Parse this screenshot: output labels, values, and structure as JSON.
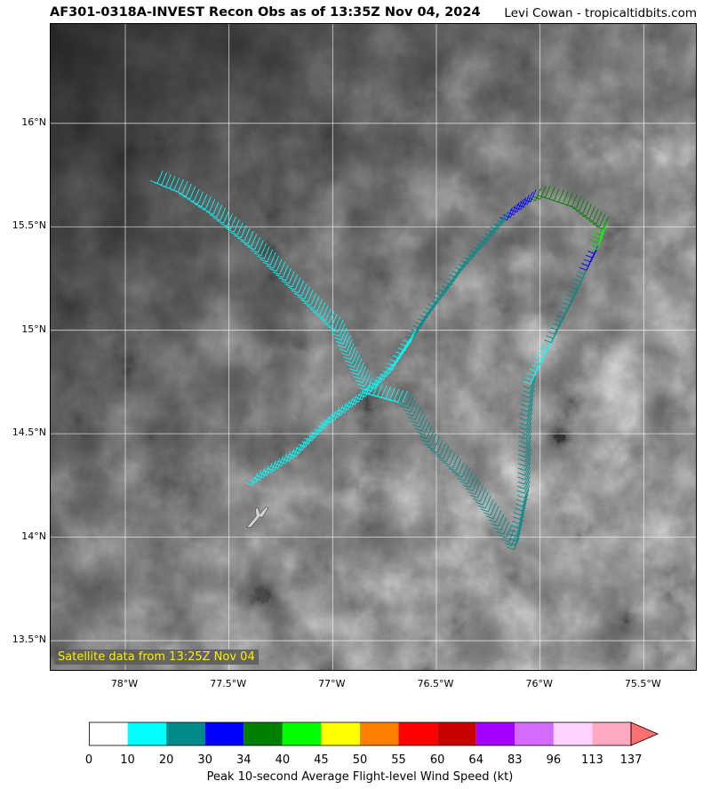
{
  "header": {
    "title": "AF301-0318A-INVEST Recon Obs as of 13:35Z Nov 04, 2024",
    "credit": "Levi Cowan - tropicaltidbits.com"
  },
  "map": {
    "satellite_label": "Satellite data from 13:25Z Nov 04",
    "lat_labels": [
      "16°N",
      "15.5°N",
      "15°N",
      "14.5°N",
      "14°N",
      "13.5°N"
    ],
    "lon_labels": [
      "78°W",
      "77.5°W",
      "77°W",
      "76.5°W",
      "76°W",
      "75.5°W"
    ],
    "lat_range": [
      13.35,
      16.48
    ],
    "lon_range": [
      -78.36,
      -75.24
    ],
    "aircraft_icon": "airplane-icon",
    "flight_track": [
      {
        "lon": -77.82,
        "lat": 15.77,
        "color": "cyan"
      },
      {
        "lon": -77.7,
        "lat": 15.72,
        "color": "cyan"
      },
      {
        "lon": -77.55,
        "lat": 15.62,
        "color": "cyan"
      },
      {
        "lon": -77.35,
        "lat": 15.45,
        "color": "cyan"
      },
      {
        "lon": -77.2,
        "lat": 15.3,
        "color": "cyan"
      },
      {
        "lon": -77.05,
        "lat": 15.15,
        "color": "cyan"
      },
      {
        "lon": -76.95,
        "lat": 15.05,
        "color": "cyan"
      },
      {
        "lon": -76.88,
        "lat": 14.9,
        "color": "cyan"
      },
      {
        "lon": -76.8,
        "lat": 14.75,
        "color": "cyan"
      },
      {
        "lon": -76.62,
        "lat": 14.7,
        "color": "teal"
      },
      {
        "lon": -76.5,
        "lat": 14.5,
        "color": "teal"
      },
      {
        "lon": -76.35,
        "lat": 14.35,
        "color": "teal"
      },
      {
        "lon": -76.2,
        "lat": 14.15,
        "color": "teal"
      },
      {
        "lon": -76.1,
        "lat": 14.0,
        "color": "teal"
      },
      {
        "lon": -76.05,
        "lat": 14.25,
        "color": "teal"
      },
      {
        "lon": -76.04,
        "lat": 14.6,
        "color": "teal"
      },
      {
        "lon": -76.02,
        "lat": 14.8,
        "color": "cyan"
      },
      {
        "lon": -75.92,
        "lat": 15.0,
        "color": "teal"
      },
      {
        "lon": -75.82,
        "lat": 15.2,
        "color": "teal"
      },
      {
        "lon": -75.75,
        "lat": 15.35,
        "color": "blue"
      },
      {
        "lon": -75.7,
        "lat": 15.45,
        "color": "lime"
      },
      {
        "lon": -75.67,
        "lat": 15.55,
        "color": "green"
      },
      {
        "lon": -75.8,
        "lat": 15.65,
        "color": "green"
      },
      {
        "lon": -75.95,
        "lat": 15.7,
        "color": "green"
      },
      {
        "lon": -76.02,
        "lat": 15.68,
        "color": "blue"
      },
      {
        "lon": -76.15,
        "lat": 15.58,
        "color": "teal"
      },
      {
        "lon": -76.35,
        "lat": 15.35,
        "color": "teal"
      },
      {
        "lon": -76.52,
        "lat": 15.12,
        "color": "teal"
      },
      {
        "lon": -76.6,
        "lat": 15.0,
        "color": "cyan"
      },
      {
        "lon": -76.7,
        "lat": 14.85,
        "color": "cyan"
      },
      {
        "lon": -76.8,
        "lat": 14.75,
        "color": "cyan"
      },
      {
        "lon": -77.0,
        "lat": 14.6,
        "color": "cyan"
      },
      {
        "lon": -77.15,
        "lat": 14.45,
        "color": "cyan"
      },
      {
        "lon": -77.38,
        "lat": 14.3,
        "color": "cyan"
      }
    ],
    "aircraft_position": {
      "lon": -77.35,
      "lat": 14.1
    }
  },
  "colorbar": {
    "label": "Peak 10-second Average Flight-level Wind Speed (kt)",
    "ticks": [
      "0",
      "10",
      "20",
      "30",
      "34",
      "40",
      "45",
      "50",
      "55",
      "60",
      "64",
      "83",
      "96",
      "113",
      "137"
    ],
    "colors": [
      "#ffffff",
      "#00ffff",
      "#008b8b",
      "#0000ff",
      "#008000",
      "#00ff00",
      "#ffff00",
      "#ff7f00",
      "#ff0000",
      "#c80000",
      "#a600ff",
      "#d46bff",
      "#ffd2ff",
      "#ffaac0"
    ],
    "extend_color": "#ff7070"
  },
  "colors": {
    "cyan": "#00ffff",
    "teal": "#008b8b",
    "blue": "#0000ff",
    "green": "#008000",
    "lime": "#00ff00",
    "white": "#ffffff"
  }
}
